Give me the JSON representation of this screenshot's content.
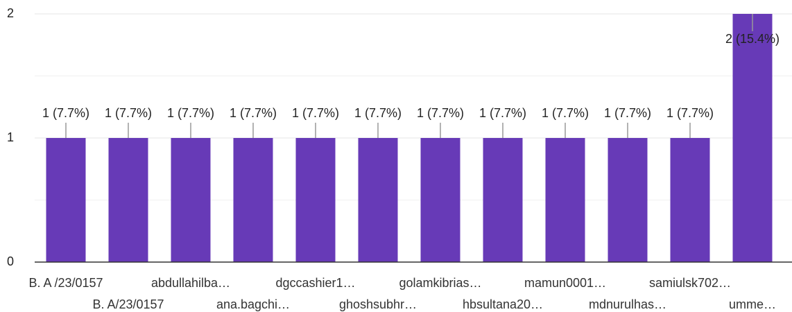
{
  "chart_data": {
    "type": "bar",
    "categories": [
      "B. A /23/0157",
      "B. A/23/0157",
      "abdullahilba…",
      "ana.bagchi…",
      "dgccashier1…",
      "ghoshsubhr…",
      "golamkibrias…",
      "hbsultana20…",
      "mamun0001…",
      "mdnurulhas…",
      "samiulsk702…",
      "umme…"
    ],
    "values": [
      1,
      1,
      1,
      1,
      1,
      1,
      1,
      1,
      1,
      1,
      1,
      2
    ],
    "value_labels": [
      "1 (7.7%)",
      "1 (7.7%)",
      "1 (7.7%)",
      "1 (7.7%)",
      "1 (7.7%)",
      "1 (7.7%)",
      "1 (7.7%)",
      "1 (7.7%)",
      "1 (7.7%)",
      "1 (7.7%)",
      "1 (7.7%)",
      "2 (15.4%)"
    ],
    "color": "#673ab7",
    "ylim": [
      0,
      2
    ],
    "yticks": [
      0,
      1,
      2
    ],
    "grid": true
  }
}
